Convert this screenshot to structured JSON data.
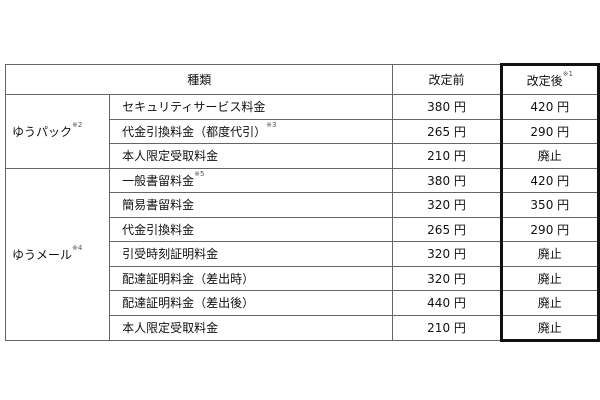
{
  "header": {
    "type": "種類",
    "before": "改定前",
    "after": "改定後",
    "after_note": "※1"
  },
  "groups": [
    {
      "name": "ゆうパック",
      "note": "※2",
      "rows": [
        {
          "item": "セキュリティサービス料金",
          "note": "",
          "before": "380 円",
          "after": "420 円"
        },
        {
          "item": "代金引換料金（都度代引）",
          "note": "※3",
          "before": "265 円",
          "after": "290 円"
        },
        {
          "item": "本人限定受取料金",
          "note": "",
          "before": "210 円",
          "after": "廃止"
        }
      ]
    },
    {
      "name": "ゆうメール",
      "note": "※4",
      "rows": [
        {
          "item": "一般書留料金",
          "note": "※5",
          "before": "380 円",
          "after": "420 円"
        },
        {
          "item": "簡易書留料金",
          "note": "",
          "before": "320 円",
          "after": "350 円"
        },
        {
          "item": "代金引換料金",
          "note": "",
          "before": "265 円",
          "after": "290 円"
        },
        {
          "item": "引受時刻証明料金",
          "note": "",
          "before": "320 円",
          "after": "廃止"
        },
        {
          "item": "配達証明料金（差出時）",
          "note": "",
          "before": "320 円",
          "after": "廃止"
        },
        {
          "item": "配達証明料金（差出後）",
          "note": "",
          "before": "440 円",
          "after": "廃止"
        },
        {
          "item": "本人限定受取料金",
          "note": "",
          "before": "210 円",
          "after": "廃止"
        }
      ]
    }
  ]
}
